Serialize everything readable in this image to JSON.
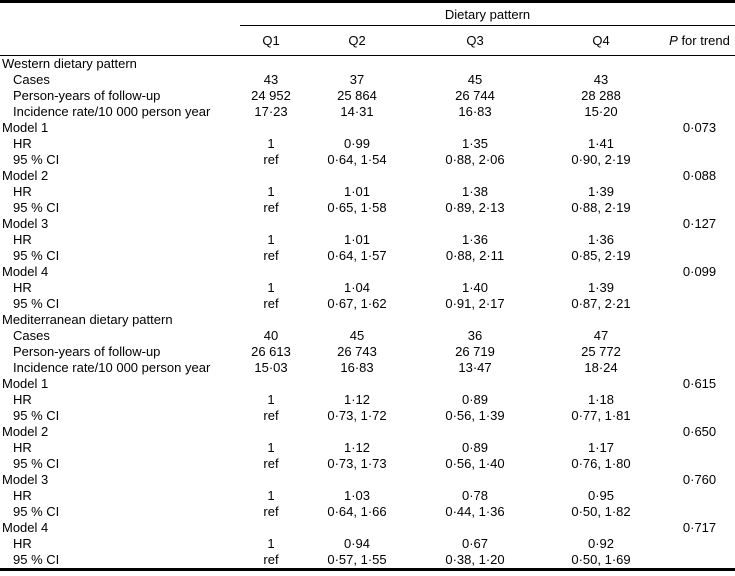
{
  "table": {
    "spanner_label": "Dietary pattern",
    "column_headers": [
      "Q1",
      "Q2",
      "Q3",
      "Q4"
    ],
    "p_header": {
      "italic_part": "P",
      "rest_part": " for trend"
    },
    "rows": [
      {
        "label": "Western dietary pattern",
        "indent": false,
        "cells": [
          "",
          "",
          "",
          ""
        ],
        "p": ""
      },
      {
        "label": "Cases",
        "indent": true,
        "cells": [
          "43",
          "37",
          "45",
          "43"
        ],
        "p": ""
      },
      {
        "label": "Person-years of follow-up",
        "indent": true,
        "cells": [
          "24 952",
          "25 864",
          "26 744",
          "28 288"
        ],
        "p": ""
      },
      {
        "label": "Incidence rate/10 000 person year",
        "indent": true,
        "cells": [
          "17·23",
          "14·31",
          "16·83",
          "15·20"
        ],
        "p": ""
      },
      {
        "label": "Model 1",
        "indent": false,
        "cells": [
          "",
          "",
          "",
          ""
        ],
        "p": "0·073"
      },
      {
        "label": "HR",
        "indent": true,
        "cells": [
          "1",
          "0·99",
          "1·35",
          "1·41"
        ],
        "p": ""
      },
      {
        "label": "95 % CI",
        "indent": true,
        "cells": [
          "ref",
          "0·64, 1·54",
          "0·88, 2·06",
          "0·90, 2·19"
        ],
        "p": ""
      },
      {
        "label": "Model 2",
        "indent": false,
        "cells": [
          "",
          "",
          "",
          ""
        ],
        "p": "0·088"
      },
      {
        "label": "HR",
        "indent": true,
        "cells": [
          "1",
          "1·01",
          "1·38",
          "1·39"
        ],
        "p": ""
      },
      {
        "label": "95 % CI",
        "indent": true,
        "cells": [
          "ref",
          "0·65, 1·58",
          "0·89, 2·13",
          "0·88, 2·19"
        ],
        "p": ""
      },
      {
        "label": "Model 3",
        "indent": false,
        "cells": [
          "",
          "",
          "",
          ""
        ],
        "p": "0·127"
      },
      {
        "label": "HR",
        "indent": true,
        "cells": [
          "1",
          "1·01",
          "1·36",
          "1·36"
        ],
        "p": ""
      },
      {
        "label": "95 % CI",
        "indent": true,
        "cells": [
          "ref",
          "0·64, 1·57",
          "0·88, 2·11",
          "0·85, 2·19"
        ],
        "p": ""
      },
      {
        "label": "Model 4",
        "indent": false,
        "cells": [
          "",
          "",
          "",
          ""
        ],
        "p": "0·099"
      },
      {
        "label": "HR",
        "indent": true,
        "cells": [
          "1",
          "1·04",
          "1·40",
          "1·39"
        ],
        "p": ""
      },
      {
        "label": "95 % CI",
        "indent": true,
        "cells": [
          "ref",
          "0·67, 1·62",
          "0·91, 2·17",
          "0·87, 2·21"
        ],
        "p": ""
      },
      {
        "label": "Mediterranean dietary pattern",
        "indent": false,
        "cells": [
          "",
          "",
          "",
          ""
        ],
        "p": ""
      },
      {
        "label": "Cases",
        "indent": true,
        "cells": [
          "40",
          "45",
          "36",
          "47"
        ],
        "p": ""
      },
      {
        "label": "Person-years of follow-up",
        "indent": true,
        "cells": [
          "26 613",
          "26 743",
          "26 719",
          "25 772"
        ],
        "p": ""
      },
      {
        "label": "Incidence rate/10 000 person year",
        "indent": true,
        "cells": [
          "15·03",
          "16·83",
          "13·47",
          "18·24"
        ],
        "p": ""
      },
      {
        "label": "Model 1",
        "indent": false,
        "cells": [
          "",
          "",
          "",
          ""
        ],
        "p": "0·615"
      },
      {
        "label": "HR",
        "indent": true,
        "cells": [
          "1",
          "1·12",
          "0·89",
          "1·18"
        ],
        "p": ""
      },
      {
        "label": "95 % CI",
        "indent": true,
        "cells": [
          "ref",
          "0·73, 1·72",
          "0·56, 1·39",
          "0·77, 1·81"
        ],
        "p": ""
      },
      {
        "label": "Model 2",
        "indent": false,
        "cells": [
          "",
          "",
          "",
          ""
        ],
        "p": "0·650"
      },
      {
        "label": "HR",
        "indent": true,
        "cells": [
          "1",
          "1·12",
          "0·89",
          "1·17"
        ],
        "p": ""
      },
      {
        "label": "95 % CI",
        "indent": true,
        "cells": [
          "ref",
          "0·73, 1·73",
          "0·56, 1·40",
          "0·76, 1·80"
        ],
        "p": ""
      },
      {
        "label": "Model 3",
        "indent": false,
        "cells": [
          "",
          "",
          "",
          ""
        ],
        "p": "0·760"
      },
      {
        "label": "HR",
        "indent": true,
        "cells": [
          "1",
          "1·03",
          "0·78",
          "0·95"
        ],
        "p": ""
      },
      {
        "label": "95 % CI",
        "indent": true,
        "cells": [
          "ref",
          "0·64, 1·66",
          "0·44, 1·36",
          "0·50, 1·82"
        ],
        "p": ""
      },
      {
        "label": "Model 4",
        "indent": false,
        "cells": [
          "",
          "",
          "",
          ""
        ],
        "p": "0·717"
      },
      {
        "label": "HR",
        "indent": true,
        "cells": [
          "1",
          "0·94",
          "0·67",
          "0·92"
        ],
        "p": ""
      },
      {
        "label": "95 % CI",
        "indent": true,
        "cells": [
          "ref",
          "0·57, 1·55",
          "0·38, 1·20",
          "0·50, 1·69"
        ],
        "p": ""
      }
    ]
  }
}
